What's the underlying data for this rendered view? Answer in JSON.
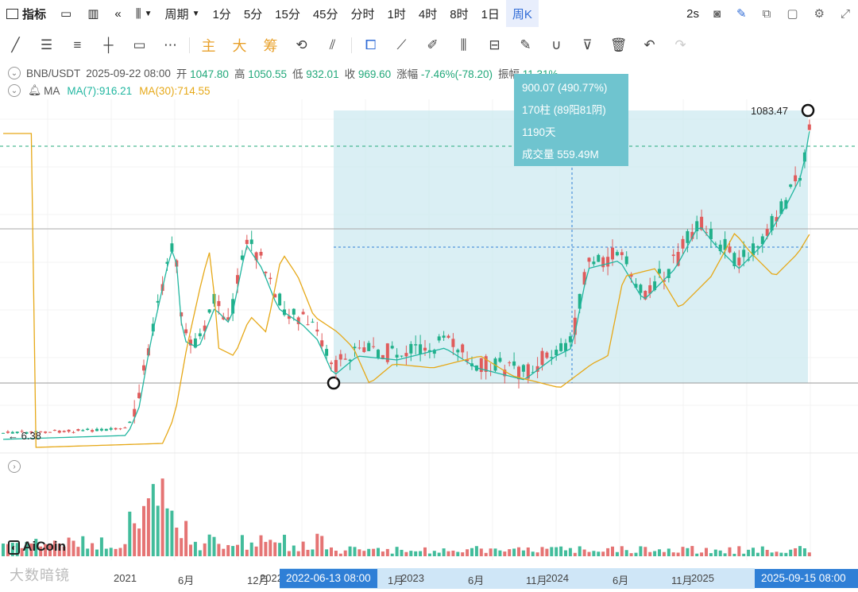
{
  "toolbar": {
    "indicators_label": "指标",
    "period_label": "周期",
    "periods": [
      "1分",
      "5分",
      "15分",
      "45分",
      "分时",
      "1时",
      "4时",
      "8时",
      "1日",
      "周K"
    ],
    "active_period": "周K",
    "refresh": "2s"
  },
  "drawing_tools": {
    "main_label": "主",
    "big_label": "大",
    "chip_label": "筹"
  },
  "info": {
    "symbol": "BNB/USDT",
    "datetime": "2025-09-22 08:00",
    "open_label": "开",
    "open": "1047.80",
    "high_label": "高",
    "high": "1050.55",
    "low_label": "低",
    "low": "932.01",
    "close_label": "收",
    "close": "969.60",
    "change_label": "涨幅",
    "change": "-7.46%(-78.20)",
    "amplitude_label": "振幅",
    "amplitude": "11.31%",
    "ma_label": "MA",
    "ma7": "MA(7):916.21",
    "ma30": "MA(30):714.55"
  },
  "measure": {
    "price_change": "900.07 (490.77%)",
    "bars": "170柱 (89阳81阴)",
    "days": "1190天",
    "volume": "成交量 559.49M"
  },
  "price_labels": {
    "high_mark": "1083.47",
    "low_mark": "← 6.38"
  },
  "xaxis": {
    "ticks": [
      "2021",
      "6月",
      "12月",
      "2022",
      "1月",
      "2023",
      "6月",
      "11月",
      "2024",
      "6月",
      "11月",
      "2025"
    ],
    "start_tag": "2022-06-13 08:00",
    "end_tag": "2025-09-15 08:00"
  },
  "brand": {
    "logo": "AiCoin",
    "watermark": "大数暗镜"
  },
  "colors": {
    "up": "#e05c5c",
    "down": "#21b08a",
    "ma7": "#21b6a0",
    "ma30": "#e6a817",
    "measure_fill": "#cdeaf0",
    "accent": "#2f7fd6"
  }
}
